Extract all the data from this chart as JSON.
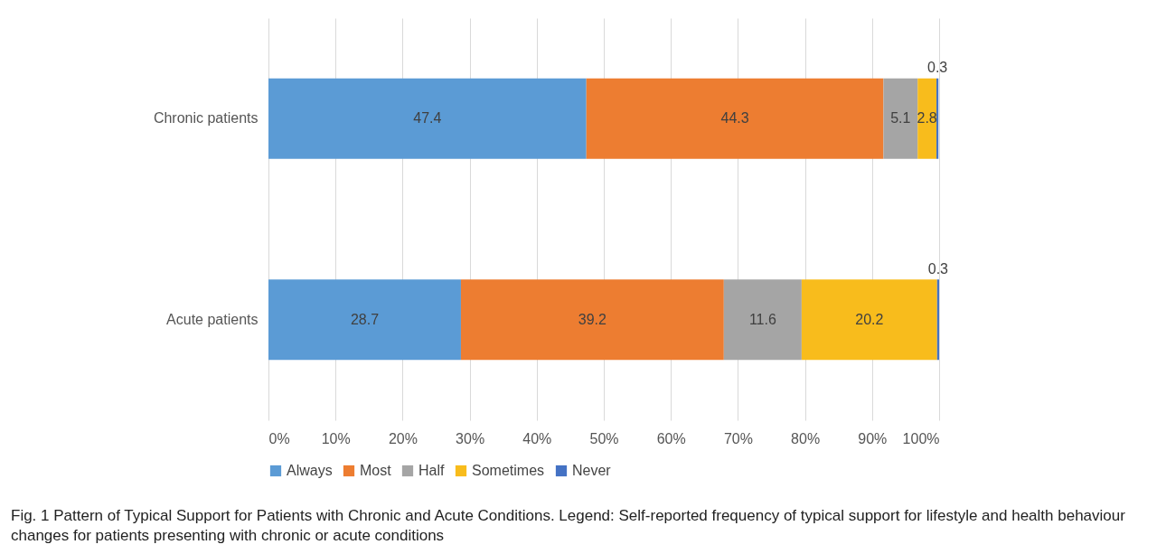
{
  "chart_data": {
    "type": "bar",
    "orientation": "horizontal",
    "stacked": true,
    "data_labels": true,
    "grid": "x",
    "legend": "bottom",
    "categories": [
      "Chronic patients",
      "Acute patients"
    ],
    "series": [
      {
        "name": "Always",
        "color": "#5b9bd5",
        "values": [
          47.4,
          28.7
        ]
      },
      {
        "name": "Most",
        "color": "#ed7d31",
        "values": [
          44.3,
          39.2
        ]
      },
      {
        "name": "Half",
        "color": "#a5a5a5",
        "values": [
          5.1,
          11.6
        ]
      },
      {
        "name": "Sometimes",
        "color": "#f8bc1c",
        "values": [
          2.8,
          20.2
        ]
      },
      {
        "name": "Never",
        "color": "#4472c4",
        "values": [
          0.3,
          0.3
        ]
      }
    ],
    "xlim": [
      0,
      100
    ],
    "xticks": [
      {
        "value": 0,
        "label": "0%"
      },
      {
        "value": 10,
        "label": "10%"
      },
      {
        "value": 20,
        "label": "20%"
      },
      {
        "value": 30,
        "label": "30%"
      },
      {
        "value": 40,
        "label": "40%"
      },
      {
        "value": 50,
        "label": "50%"
      },
      {
        "value": 60,
        "label": "60%"
      },
      {
        "value": 70,
        "label": "70%"
      },
      {
        "value": 80,
        "label": "80%"
      },
      {
        "value": 90,
        "label": "90%"
      },
      {
        "value": 100,
        "label": "100%"
      }
    ],
    "annotations": [
      "Fig. 1 Pattern of Typical Support for Patients with Chronic and Acute Conditions. Legend: Self-reported frequency of typical support for lifestyle and health behaviour changes for patients presenting with chronic or acute conditions"
    ]
  }
}
